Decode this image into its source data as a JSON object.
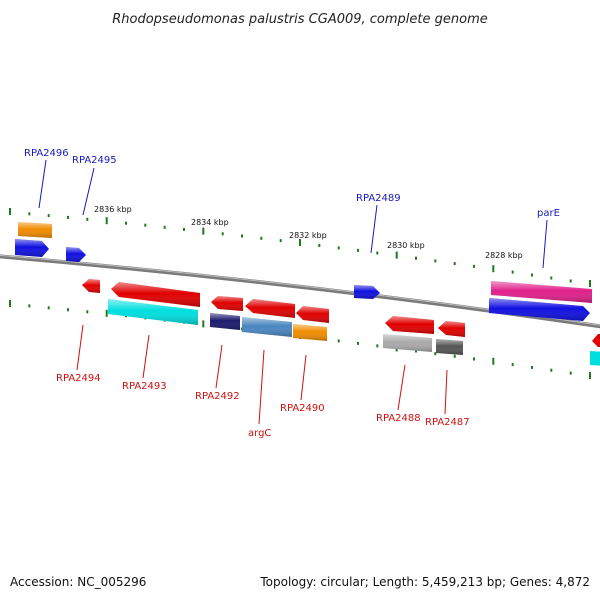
{
  "title": "Rhodopseudomonas palustris CGA009, complete genome",
  "footer": {
    "accession": "Accession: NC_005296",
    "topology": "Topology: circular; Length: 5,459,213 bp; Genes: 4,872"
  },
  "scale_labels": [
    "2836 kbp",
    "2834 kbp",
    "2832 kbp",
    "2830 kbp",
    "2828 kbp"
  ],
  "gene_labels_top": [
    "RPA2496",
    "RPA2495",
    "RPA2489",
    "parE"
  ],
  "gene_labels_bottom": [
    "RPA2494",
    "RPA2493",
    "RPA2492",
    "argC",
    "RPA2490",
    "RPA2488",
    "RPA2487"
  ],
  "colors": {
    "backbone": "#7a7a7a",
    "tick": "#1f7a1f",
    "label_blue": "#1a1ab8",
    "label_red": "#cc1111",
    "gene_red": "#e00000",
    "gene_blue": "#1010e0",
    "gene_cyan": "#00dede",
    "gene_orange": "#f08c00",
    "gene_magenta": "#e0208a",
    "gene_steel": "#4a86c0",
    "gene_navy": "#1a1a6e",
    "gene_gray": "#aaaaaa",
    "gene_darkgray": "#555555"
  }
}
